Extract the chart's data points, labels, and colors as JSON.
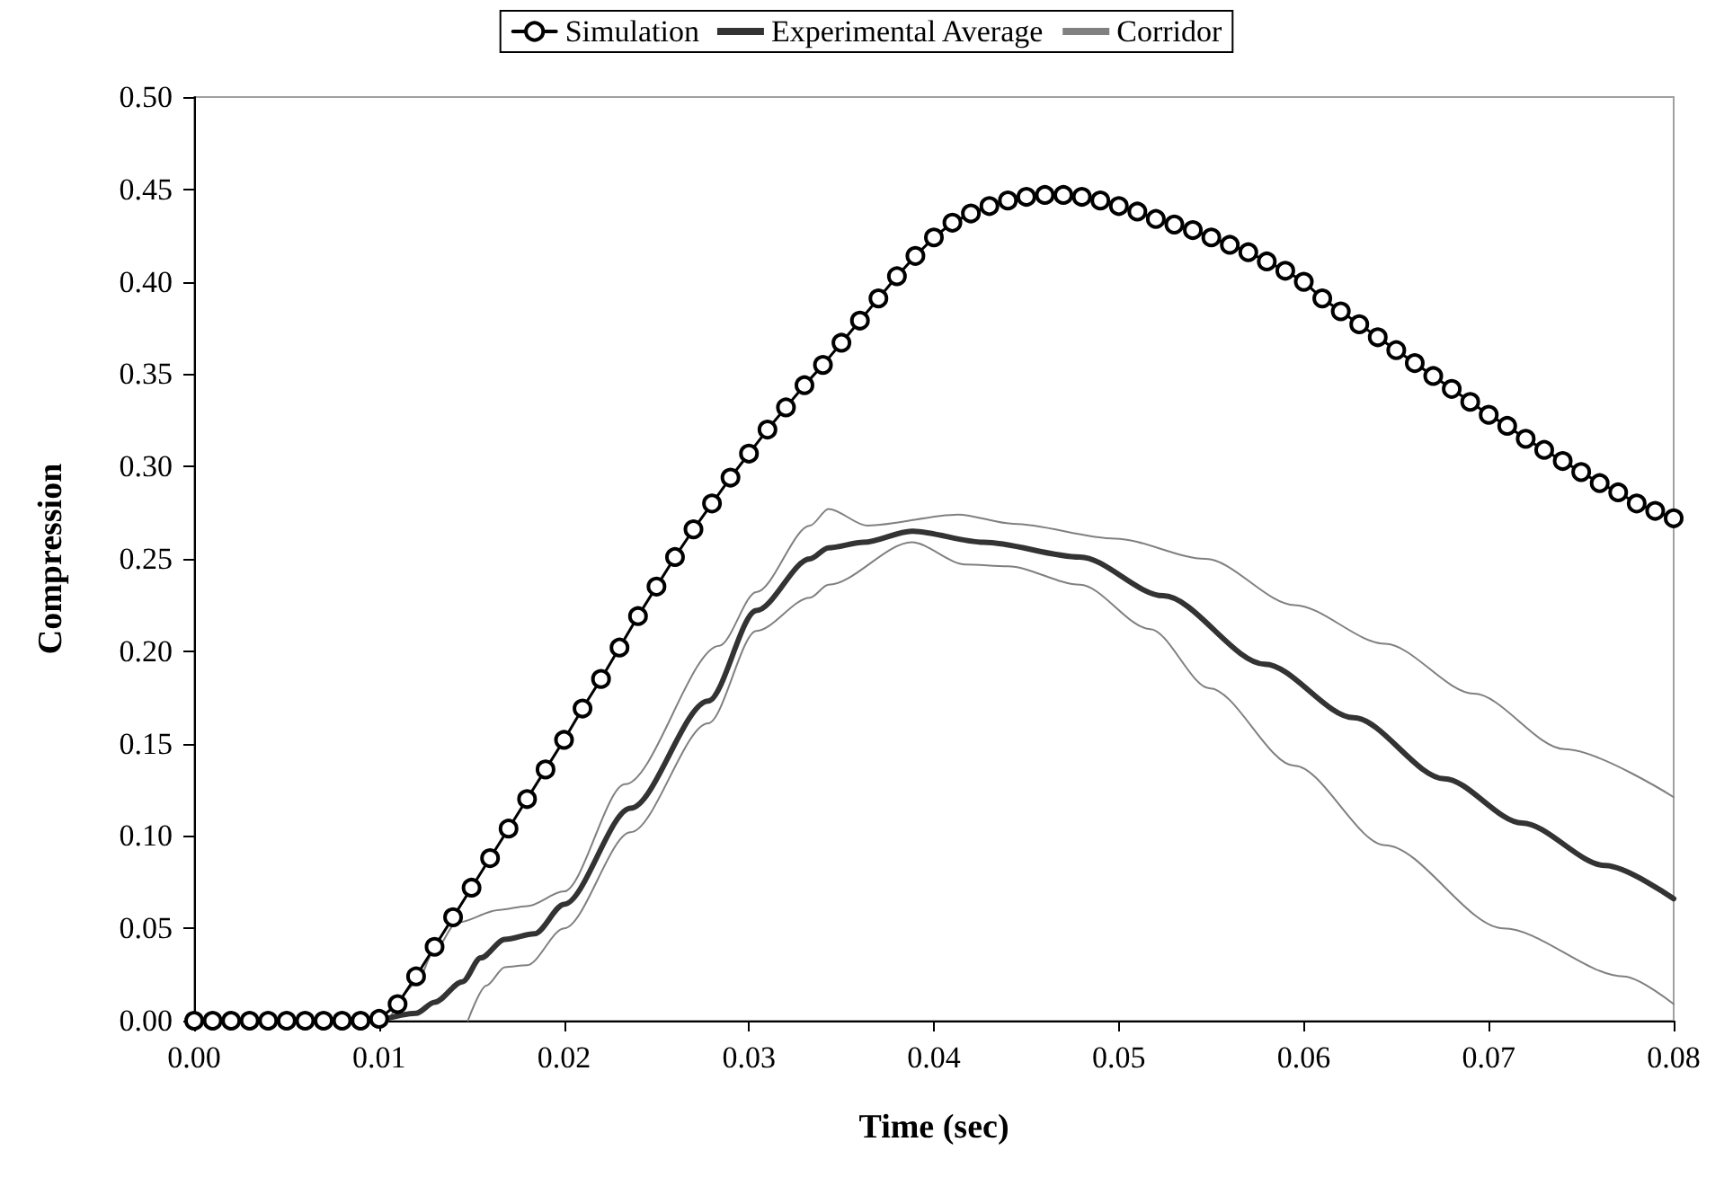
{
  "chart_data": {
    "type": "line",
    "xlabel": "Time (sec)",
    "ylabel": "Compression",
    "xlim": [
      0,
      0.08
    ],
    "ylim": [
      0,
      0.5
    ],
    "xticks": [
      {
        "value": 0,
        "label": "0.00"
      },
      {
        "value": 0.01,
        "label": "0.01"
      },
      {
        "value": 0.02,
        "label": "0.02"
      },
      {
        "value": 0.03,
        "label": "0.03"
      },
      {
        "value": 0.04,
        "label": "0.04"
      },
      {
        "value": 0.05,
        "label": "0.05"
      },
      {
        "value": 0.06,
        "label": "0.06"
      },
      {
        "value": 0.07,
        "label": "0.07"
      },
      {
        "value": 0.08,
        "label": "0.08"
      }
    ],
    "yticks": [
      {
        "value": 0,
        "label": "0.00"
      },
      {
        "value": 0.05,
        "label": "0.05"
      },
      {
        "value": 0.1,
        "label": "0.10"
      },
      {
        "value": 0.15,
        "label": "0.15"
      },
      {
        "value": 0.2,
        "label": "0.20"
      },
      {
        "value": 0.25,
        "label": "0.25"
      },
      {
        "value": 0.3,
        "label": "0.30"
      },
      {
        "value": 0.35,
        "label": "0.35"
      },
      {
        "value": 0.4,
        "label": "0.40"
      },
      {
        "value": 0.45,
        "label": "0.45"
      },
      {
        "value": 0.5,
        "label": "0.50"
      }
    ],
    "grid": false,
    "legend": "top",
    "series": [
      {
        "name": "Simulation",
        "color": "#000000",
        "marker": "circle",
        "x": [
          0,
          0.001,
          0.002,
          0.003,
          0.004,
          0.005,
          0.006,
          0.007,
          0.008,
          0.009,
          0.01,
          0.011,
          0.012,
          0.013,
          0.014,
          0.015,
          0.016,
          0.017,
          0.018,
          0.019,
          0.02,
          0.021,
          0.022,
          0.023,
          0.024,
          0.025,
          0.026,
          0.027,
          0.028,
          0.029,
          0.03,
          0.031,
          0.032,
          0.033,
          0.034,
          0.035,
          0.036,
          0.037,
          0.038,
          0.039,
          0.04,
          0.041,
          0.042,
          0.043,
          0.044,
          0.045,
          0.046,
          0.047,
          0.048,
          0.049,
          0.05,
          0.051,
          0.052,
          0.053,
          0.054,
          0.055,
          0.056,
          0.057,
          0.058,
          0.059,
          0.06,
          0.061,
          0.062,
          0.063,
          0.064,
          0.065,
          0.066,
          0.067,
          0.068,
          0.069,
          0.07,
          0.071,
          0.072,
          0.073,
          0.074,
          0.075,
          0.076,
          0.077,
          0.078,
          0.079,
          0.08
        ],
        "values": [
          0,
          0,
          0,
          0,
          0,
          0,
          0,
          0,
          0,
          0,
          0.001,
          0.009,
          0.024,
          0.04,
          0.056,
          0.072,
          0.088,
          0.104,
          0.12,
          0.136,
          0.152,
          0.169,
          0.185,
          0.202,
          0.219,
          0.235,
          0.251,
          0.266,
          0.28,
          0.294,
          0.307,
          0.32,
          0.332,
          0.344,
          0.355,
          0.367,
          0.379,
          0.391,
          0.403,
          0.414,
          0.424,
          0.432,
          0.437,
          0.441,
          0.444,
          0.446,
          0.447,
          0.447,
          0.446,
          0.444,
          0.441,
          0.438,
          0.434,
          0.431,
          0.428,
          0.424,
          0.42,
          0.416,
          0.411,
          0.406,
          0.4,
          0.391,
          0.384,
          0.377,
          0.37,
          0.363,
          0.356,
          0.349,
          0.342,
          0.335,
          0.328,
          0.322,
          0.315,
          0.309,
          0.303,
          0.297,
          0.291,
          0.286,
          0.28,
          0.276,
          0.272
        ]
      },
      {
        "name": "Experimental Average",
        "color": "#333333",
        "marker": "none",
        "x": [
          0.01,
          0.012,
          0.013,
          0.0145,
          0.0155,
          0.0168,
          0.0184,
          0.02,
          0.0236,
          0.0278,
          0.0304,
          0.0333,
          0.0343,
          0.0362,
          0.0388,
          0.0427,
          0.0479,
          0.0524,
          0.0579,
          0.0627,
          0.0676,
          0.0718,
          0.0763,
          0.08
        ],
        "values": [
          0,
          0.004,
          0.01,
          0.021,
          0.034,
          0.044,
          0.047,
          0.063,
          0.115,
          0.173,
          0.222,
          0.25,
          0.256,
          0.259,
          0.265,
          0.259,
          0.251,
          0.23,
          0.193,
          0.164,
          0.131,
          0.107,
          0.084,
          0.066
        ]
      },
      {
        "name": "Corridor",
        "color": "#808080",
        "marker": "none",
        "x": [
          0.0105,
          0.012,
          0.013,
          0.0142,
          0.0165,
          0.018,
          0.02,
          0.0233,
          0.0284,
          0.0304,
          0.0333,
          0.0343,
          0.0364,
          0.0413,
          0.0443,
          0.0498,
          0.0547,
          0.0595,
          0.0644,
          0.0692,
          0.0741,
          0.08
        ],
        "values": [
          0,
          0.02,
          0.038,
          0.053,
          0.06,
          0.062,
          0.07,
          0.128,
          0.203,
          0.232,
          0.268,
          0.277,
          0.268,
          0.274,
          0.269,
          0.261,
          0.25,
          0.225,
          0.204,
          0.177,
          0.147,
          0.121
        ]
      },
      {
        "color": "#808080",
        "marker": "none",
        "x": [
          0.0148,
          0.0158,
          0.0168,
          0.018,
          0.02,
          0.0236,
          0.0278,
          0.0304,
          0.0333,
          0.0343,
          0.0388,
          0.0417,
          0.044,
          0.0479,
          0.0517,
          0.0549,
          0.0595,
          0.0644,
          0.0708,
          0.0773,
          0.08
        ],
        "values": [
          0,
          0.019,
          0.029,
          0.03,
          0.05,
          0.102,
          0.161,
          0.211,
          0.229,
          0.236,
          0.259,
          0.247,
          0.246,
          0.236,
          0.212,
          0.18,
          0.138,
          0.095,
          0.05,
          0.024,
          0.009
        ]
      }
    ]
  }
}
